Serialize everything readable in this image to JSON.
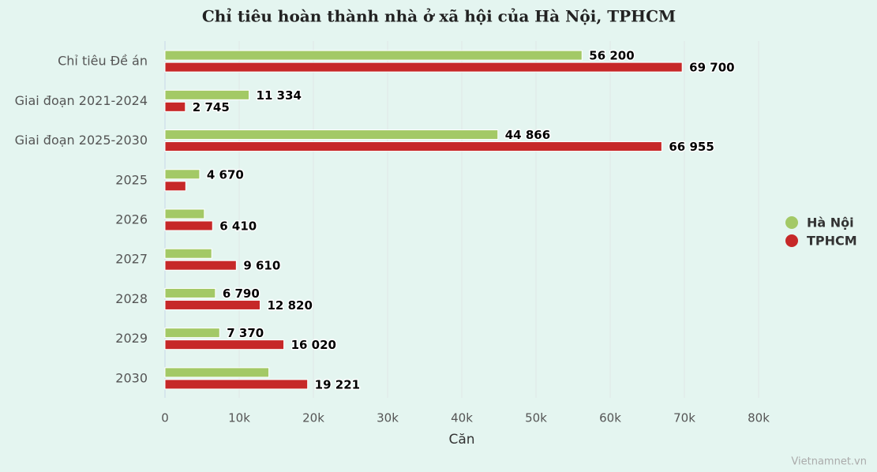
{
  "chart_data": {
    "type": "hbar",
    "title": "Chỉ tiêu hoàn thành nhà ở xã hội của Hà Nội, TPHCM",
    "categories": [
      "Chỉ tiêu Đề án",
      "Giai đoạn 2021-2024",
      "Giai đoạn 2025-2030",
      "2025",
      "2026",
      "2027",
      "2028",
      "2029",
      "2030"
    ],
    "series": [
      {
        "name": "Hà Nội",
        "color": "#a3c966",
        "values": [
          56200,
          11334,
          44866,
          4670,
          5300,
          6300,
          6790,
          7370,
          14000
        ],
        "value_labels": [
          "56 200",
          "11 334",
          "44 866",
          "4 670",
          null,
          null,
          "6 790",
          "7 370",
          null
        ]
      },
      {
        "name": "TPHCM",
        "color": "#c62828",
        "values": [
          69700,
          2745,
          66955,
          2800,
          6410,
          9610,
          12820,
          16020,
          19221
        ],
        "value_labels": [
          "69 700",
          "2 745",
          "66 955",
          null,
          "6 410",
          "9 610",
          "12 820",
          "16 020",
          "19 221"
        ]
      }
    ],
    "xlabel": "Căn",
    "xlim": [
      0,
      80000
    ],
    "xticks": [
      0,
      {
        "value": 10000,
        "label": "10k"
      },
      {
        "value": 20000,
        "label": "20k"
      },
      {
        "value": 30000,
        "label": "30k"
      },
      {
        "value": 40000,
        "label": "40k"
      },
      {
        "value": 50000,
        "label": "50k"
      },
      {
        "value": 60000,
        "label": "60k"
      },
      {
        "value": 70000,
        "label": "70k"
      },
      {
        "value": 80000,
        "label": "80k"
      }
    ],
    "grid": true,
    "legend": "right",
    "source": "Vietnamnet.vn"
  }
}
